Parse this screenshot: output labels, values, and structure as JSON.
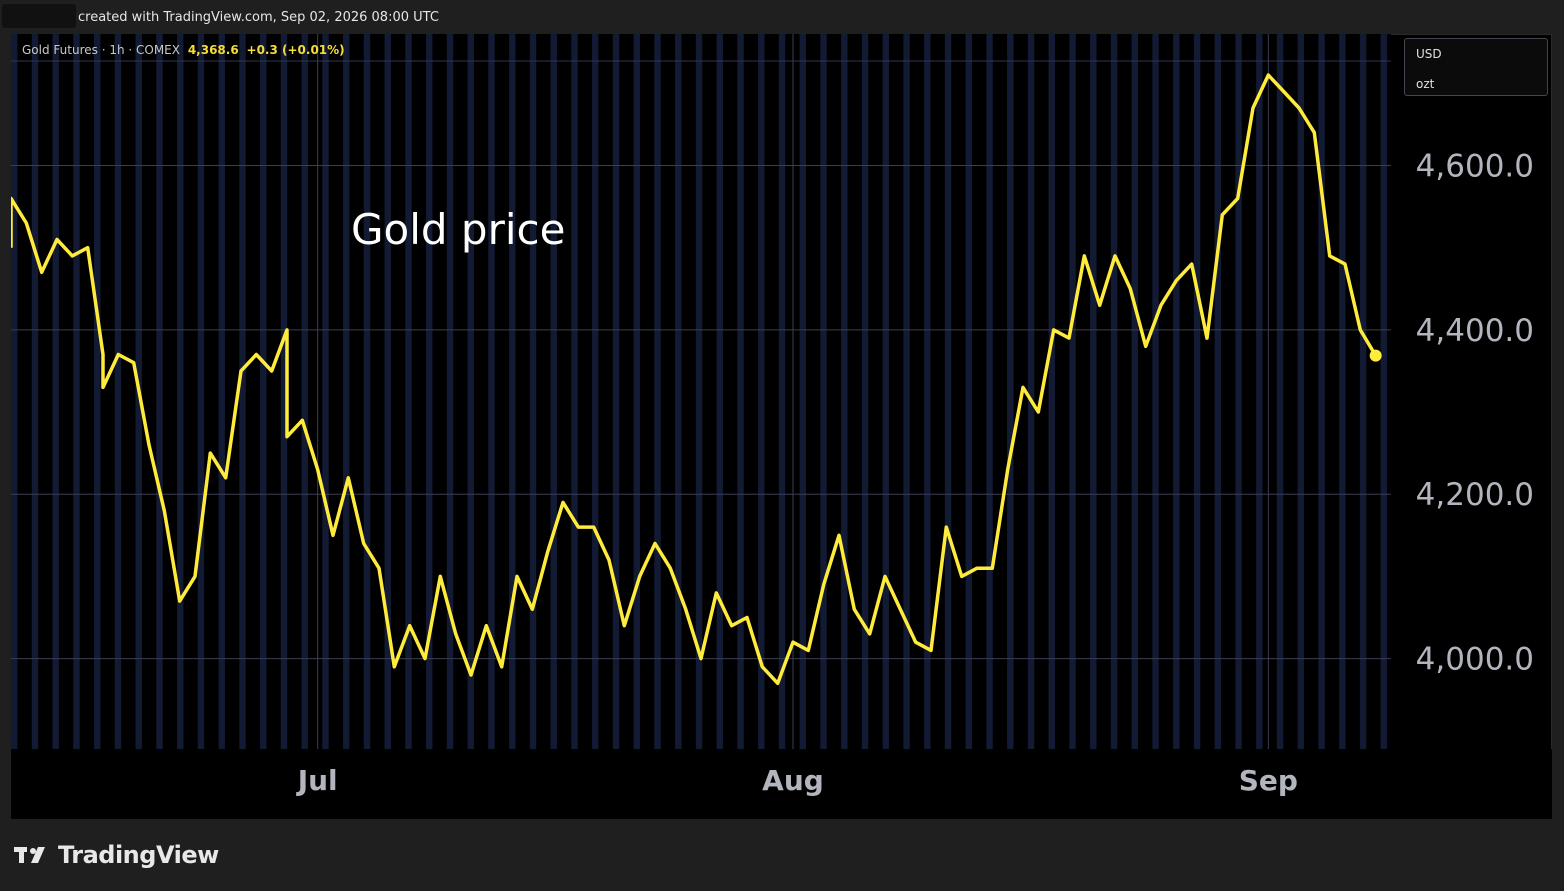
{
  "header": {
    "credit": "created with TradingView.com, Sep 02, 2026 08:00 UTC"
  },
  "legend": {
    "symbol": "Gold Futures · 1h · COMEX",
    "last": "4,368.6",
    "change": "+0.3 (+0.01%)"
  },
  "units": {
    "currency": "USD",
    "unit": "ozt"
  },
  "annotation": "Gold price",
  "footer": {
    "brand": "TradingView"
  },
  "colors": {
    "line": "#ffeb3b",
    "background": "#000000",
    "stripe": "#131a33"
  },
  "chart_data": {
    "type": "line",
    "title": "",
    "xlabel": "",
    "ylabel": "",
    "grid": true,
    "ylim": [
      3890,
      4760
    ],
    "x_ticks": [
      {
        "label": "Jul",
        "date": "2026-07-01"
      },
      {
        "label": "Aug",
        "date": "2026-08-01"
      },
      {
        "label": "Sep",
        "date": "2026-09-01"
      }
    ],
    "y_ticks": [
      {
        "label": "4,000.0",
        "value": 4000
      },
      {
        "label": "4,200.0",
        "value": 4200
      },
      {
        "label": "4,400.0",
        "value": 4400
      },
      {
        "label": "4,600.0",
        "value": 4600
      }
    ],
    "series": [
      {
        "points": [
          [
            "2026-06-11",
            4500
          ],
          [
            "2026-06-11",
            4560
          ],
          [
            "2026-06-12",
            4530
          ],
          [
            "2026-06-13",
            4470
          ],
          [
            "2026-06-14",
            4510
          ],
          [
            "2026-06-15",
            4490
          ],
          [
            "2026-06-16",
            4500
          ],
          [
            "2026-06-17",
            4370
          ],
          [
            "2026-06-17",
            4330
          ],
          [
            "2026-06-18",
            4370
          ],
          [
            "2026-06-19",
            4360
          ],
          [
            "2026-06-20",
            4260
          ],
          [
            "2026-06-21",
            4180
          ],
          [
            "2026-06-22",
            4070
          ],
          [
            "2026-06-23",
            4100
          ],
          [
            "2026-06-24",
            4250
          ],
          [
            "2026-06-25",
            4220
          ],
          [
            "2026-06-26",
            4350
          ],
          [
            "2026-06-27",
            4370
          ],
          [
            "2026-06-28",
            4350
          ],
          [
            "2026-06-29",
            4400
          ],
          [
            "2026-06-29",
            4270
          ],
          [
            "2026-06-30",
            4290
          ],
          [
            "2026-07-01",
            4230
          ],
          [
            "2026-07-02",
            4150
          ],
          [
            "2026-07-03",
            4220
          ],
          [
            "2026-07-04",
            4140
          ],
          [
            "2026-07-05",
            4110
          ],
          [
            "2026-07-06",
            3990
          ],
          [
            "2026-07-07",
            4040
          ],
          [
            "2026-07-08",
            4000
          ],
          [
            "2026-07-09",
            4100
          ],
          [
            "2026-07-10",
            4030
          ],
          [
            "2026-07-11",
            3980
          ],
          [
            "2026-07-12",
            4040
          ],
          [
            "2026-07-13",
            3990
          ],
          [
            "2026-07-14",
            4100
          ],
          [
            "2026-07-15",
            4060
          ],
          [
            "2026-07-16",
            4130
          ],
          [
            "2026-07-17",
            4190
          ],
          [
            "2026-07-18",
            4160
          ],
          [
            "2026-07-19",
            4160
          ],
          [
            "2026-07-20",
            4120
          ],
          [
            "2026-07-21",
            4040
          ],
          [
            "2026-07-22",
            4100
          ],
          [
            "2026-07-23",
            4140
          ],
          [
            "2026-07-24",
            4110
          ],
          [
            "2026-07-25",
            4060
          ],
          [
            "2026-07-26",
            4000
          ],
          [
            "2026-07-27",
            4080
          ],
          [
            "2026-07-28",
            4040
          ],
          [
            "2026-07-29",
            4050
          ],
          [
            "2026-07-30",
            3990
          ],
          [
            "2026-07-31",
            3970
          ],
          [
            "2026-08-01",
            4020
          ],
          [
            "2026-08-02",
            4010
          ],
          [
            "2026-08-03",
            4090
          ],
          [
            "2026-08-04",
            4150
          ],
          [
            "2026-08-05",
            4060
          ],
          [
            "2026-08-06",
            4030
          ],
          [
            "2026-08-07",
            4100
          ],
          [
            "2026-08-08",
            4060
          ],
          [
            "2026-08-09",
            4020
          ],
          [
            "2026-08-10",
            4010
          ],
          [
            "2026-08-11",
            4160
          ],
          [
            "2026-08-12",
            4100
          ],
          [
            "2026-08-13",
            4110
          ],
          [
            "2026-08-14",
            4110
          ],
          [
            "2026-08-15",
            4230
          ],
          [
            "2026-08-16",
            4330
          ],
          [
            "2026-08-17",
            4300
          ],
          [
            "2026-08-18",
            4400
          ],
          [
            "2026-08-19",
            4390
          ],
          [
            "2026-08-20",
            4490
          ],
          [
            "2026-08-21",
            4430
          ],
          [
            "2026-08-22",
            4490
          ],
          [
            "2026-08-23",
            4450
          ],
          [
            "2026-08-24",
            4380
          ],
          [
            "2026-08-25",
            4430
          ],
          [
            "2026-08-26",
            4460
          ],
          [
            "2026-08-27",
            4480
          ],
          [
            "2026-08-28",
            4390
          ],
          [
            "2026-08-29",
            4540
          ],
          [
            "2026-08-30",
            4560
          ],
          [
            "2026-08-31",
            4670
          ],
          [
            "2026-09-01",
            4710
          ],
          [
            "2026-09-02",
            4690
          ],
          [
            "2026-09-03",
            4670
          ],
          [
            "2026-09-04",
            4640
          ],
          [
            "2026-09-05",
            4490
          ],
          [
            "2026-09-06",
            4480
          ],
          [
            "2026-09-07",
            4400
          ],
          [
            "2026-09-08",
            4368.6
          ]
        ]
      }
    ]
  }
}
